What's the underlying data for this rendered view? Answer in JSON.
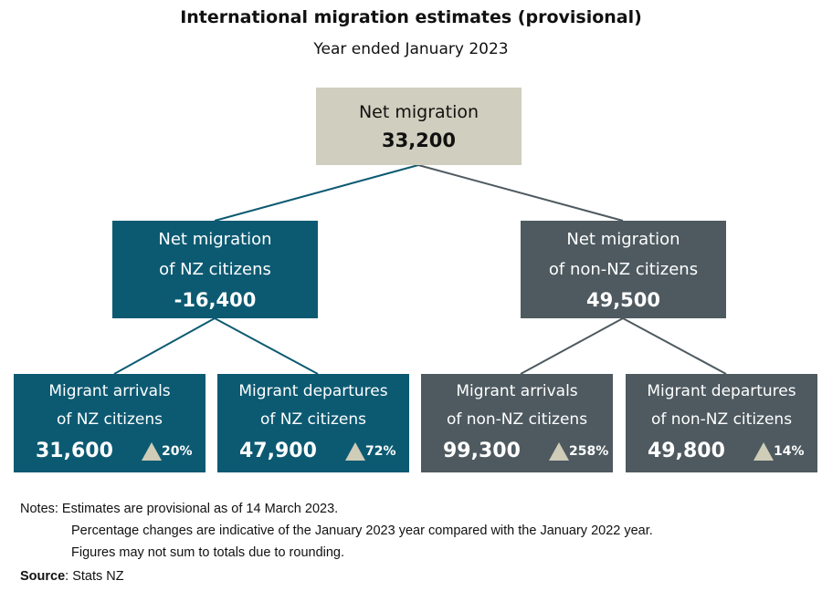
{
  "title": "International migration estimates (provisional)",
  "subtitle": "Year ended January 2023",
  "colors": {
    "top": "#d0cebe",
    "nz": "#0c5a72",
    "non_nz": "#4e5a60",
    "triangle": "#cfccb8"
  },
  "top": {
    "label": "Net migration",
    "value": "33,200"
  },
  "mid": [
    {
      "label1": "Net migration",
      "label2": "of NZ citizens",
      "value": "-16,400"
    },
    {
      "label1": "Net migration",
      "label2": "of non-NZ citizens",
      "value": "49,500"
    }
  ],
  "bottom": [
    {
      "label1": "Migrant arrivals",
      "label2": "of NZ citizens",
      "value": "31,600",
      "change": "20%",
      "icon": "triangle-up-icon"
    },
    {
      "label1": "Migrant departures",
      "label2": "of NZ citizens",
      "value": "47,900",
      "change": "72%",
      "icon": "triangle-up-icon"
    },
    {
      "label1": "Migrant arrivals",
      "label2": "of non-NZ citizens",
      "value": "99,300",
      "change": "258%",
      "icon": "triangle-up-icon"
    },
    {
      "label1": "Migrant departures",
      "label2": "of non-NZ citizens",
      "value": "49,800",
      "change": "14%",
      "icon": "triangle-up-icon"
    }
  ],
  "notes": {
    "line1": "Notes: Estimates are provisional as of 14 March 2023.",
    "line2": "Percentage changes are indicative of the January 2023 year compared with the January 2022 year.",
    "line3": "Figures may not sum to totals due to rounding."
  },
  "source": {
    "label": "Source",
    "text": ": Stats NZ"
  }
}
